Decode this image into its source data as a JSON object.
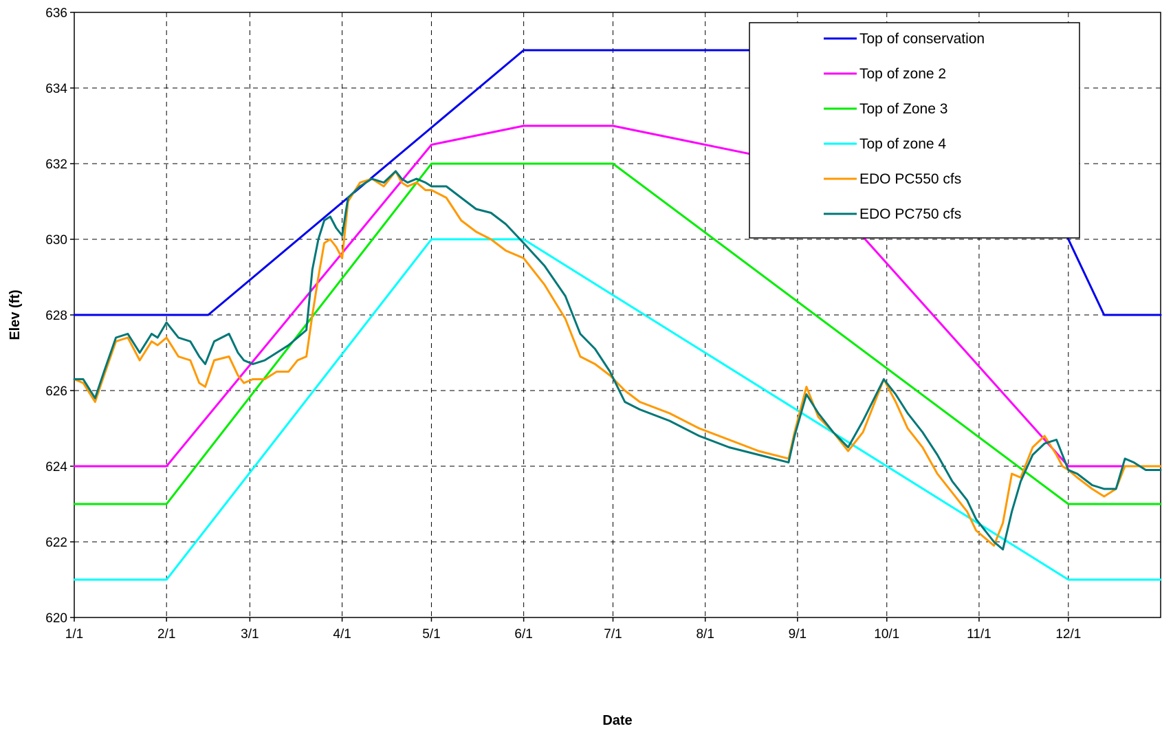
{
  "chart_data": {
    "type": "line",
    "title": "",
    "xlabel": "Date",
    "ylabel": "Elev (ft)",
    "ylim": [
      620,
      636
    ],
    "yticks": [
      620,
      622,
      624,
      626,
      628,
      630,
      632,
      634,
      636
    ],
    "xlim": [
      0,
      365
    ],
    "xticks": [
      {
        "label": "1/1",
        "day": 0
      },
      {
        "label": "2/1",
        "day": 31
      },
      {
        "label": "3/1",
        "day": 59
      },
      {
        "label": "4/1",
        "day": 90
      },
      {
        "label": "5/1",
        "day": 120
      },
      {
        "label": "6/1",
        "day": 151
      },
      {
        "label": "7/1",
        "day": 181
      },
      {
        "label": "8/1",
        "day": 212
      },
      {
        "label": "9/1",
        "day": 243
      },
      {
        "label": "10/1",
        "day": 273
      },
      {
        "label": "11/1",
        "day": 304
      },
      {
        "label": "12/1",
        "day": 334
      }
    ],
    "grid": true,
    "legend_position": "top-right",
    "series": [
      {
        "name": "Top of conservation",
        "color": "#0000ee",
        "x": [
          0,
          45,
          151,
          304,
          346,
          365
        ],
        "y": [
          628,
          628,
          635,
          635,
          628,
          628
        ]
      },
      {
        "name": "Top of zone 2",
        "color": "#ff00ff",
        "x": [
          0,
          31,
          120,
          151,
          181,
          243,
          334,
          365
        ],
        "y": [
          624,
          624,
          632.5,
          633,
          633,
          632,
          624,
          624
        ]
      },
      {
        "name": "Top of Zone 3",
        "color": "#00ee00",
        "x": [
          0,
          31,
          120,
          181,
          334,
          365
        ],
        "y": [
          623,
          623,
          632,
          632,
          623,
          623
        ]
      },
      {
        "name": "Top of zone 4",
        "color": "#00ffff",
        "x": [
          0,
          31,
          120,
          151,
          334,
          365
        ],
        "y": [
          621,
          621,
          630,
          630,
          621,
          621
        ]
      },
      {
        "name": "EDO PC550 cfs",
        "color": "#ff9900",
        "x": [
          0,
          3,
          7,
          10,
          14,
          18,
          22,
          26,
          28,
          31,
          35,
          39,
          42,
          44,
          47,
          52,
          55,
          57,
          60,
          64,
          68,
          72,
          75,
          78,
          80,
          82,
          84,
          86,
          88,
          90,
          92,
          96,
          100,
          104,
          108,
          110,
          112,
          115,
          118,
          120,
          125,
          130,
          135,
          140,
          145,
          151,
          158,
          165,
          170,
          175,
          180,
          185,
          190,
          200,
          210,
          220,
          230,
          240,
          242,
          246,
          250,
          255,
          260,
          265,
          272,
          276,
          280,
          285,
          290,
          295,
          300,
          303,
          306,
          309,
          312,
          315,
          318,
          322,
          326,
          330,
          332,
          334,
          337,
          342,
          346,
          350,
          353,
          356,
          360,
          365
        ],
        "y": [
          626.3,
          626.2,
          625.7,
          626.4,
          627.3,
          627.4,
          626.8,
          627.3,
          627.2,
          627.4,
          626.9,
          626.8,
          626.2,
          626.1,
          626.8,
          626.9,
          626.4,
          626.2,
          626.3,
          626.3,
          626.5,
          626.5,
          626.8,
          626.9,
          628,
          629,
          629.9,
          630,
          629.8,
          629.5,
          631,
          631.5,
          631.6,
          631.4,
          631.8,
          631.5,
          631.4,
          631.5,
          631.3,
          631.3,
          631.1,
          630.5,
          630.2,
          630,
          629.7,
          629.5,
          628.8,
          627.9,
          626.9,
          626.7,
          626.4,
          626.0,
          625.7,
          625.4,
          625.0,
          624.7,
          624.4,
          624.2,
          624.9,
          626.1,
          625.3,
          624.9,
          624.4,
          624.9,
          626.3,
          625.7,
          625.0,
          624.5,
          623.8,
          623.3,
          622.8,
          622.3,
          622.1,
          621.9,
          622.5,
          623.8,
          623.7,
          624.5,
          624.8,
          624.3,
          624.0,
          623.9,
          623.7,
          623.4,
          623.2,
          623.4,
          624.0,
          624.0,
          624.0,
          624.0
        ]
      },
      {
        "name": "EDO PC750 cfs",
        "color": "#007777",
        "x": [
          0,
          3,
          7,
          10,
          14,
          18,
          22,
          26,
          28,
          31,
          35,
          39,
          42,
          44,
          47,
          52,
          55,
          57,
          60,
          64,
          68,
          72,
          75,
          78,
          80,
          82,
          84,
          86,
          88,
          90,
          92,
          96,
          100,
          104,
          108,
          110,
          112,
          115,
          118,
          120,
          125,
          130,
          135,
          140,
          145,
          151,
          158,
          165,
          170,
          175,
          180,
          185,
          190,
          200,
          210,
          220,
          230,
          240,
          242,
          246,
          250,
          255,
          260,
          265,
          272,
          276,
          280,
          285,
          290,
          295,
          300,
          303,
          306,
          309,
          312,
          315,
          318,
          322,
          326,
          330,
          332,
          334,
          337,
          342,
          346,
          350,
          353,
          356,
          360,
          365
        ],
        "y": [
          626.3,
          626.3,
          625.8,
          626.5,
          627.4,
          627.5,
          627.0,
          627.5,
          627.4,
          627.8,
          627.4,
          627.3,
          626.9,
          626.7,
          627.3,
          627.5,
          627.0,
          626.8,
          626.7,
          626.8,
          627.0,
          627.2,
          627.4,
          627.6,
          629.2,
          630.0,
          630.5,
          630.6,
          630.3,
          630.1,
          631.1,
          631.4,
          631.6,
          631.5,
          631.8,
          631.6,
          631.5,
          631.6,
          631.5,
          631.4,
          631.4,
          631.1,
          630.8,
          630.7,
          630.4,
          629.9,
          629.3,
          628.5,
          627.5,
          627.1,
          626.5,
          625.7,
          625.5,
          625.2,
          624.8,
          624.5,
          624.3,
          624.1,
          624.8,
          625.9,
          625.4,
          624.9,
          624.5,
          625.2,
          626.3,
          625.9,
          625.4,
          624.9,
          624.3,
          623.6,
          623.1,
          622.6,
          622.3,
          622.0,
          621.8,
          622.8,
          623.6,
          624.3,
          624.6,
          624.7,
          624.3,
          623.9,
          623.8,
          623.5,
          623.4,
          623.4,
          624.2,
          624.1,
          623.9,
          623.9
        ]
      }
    ]
  }
}
